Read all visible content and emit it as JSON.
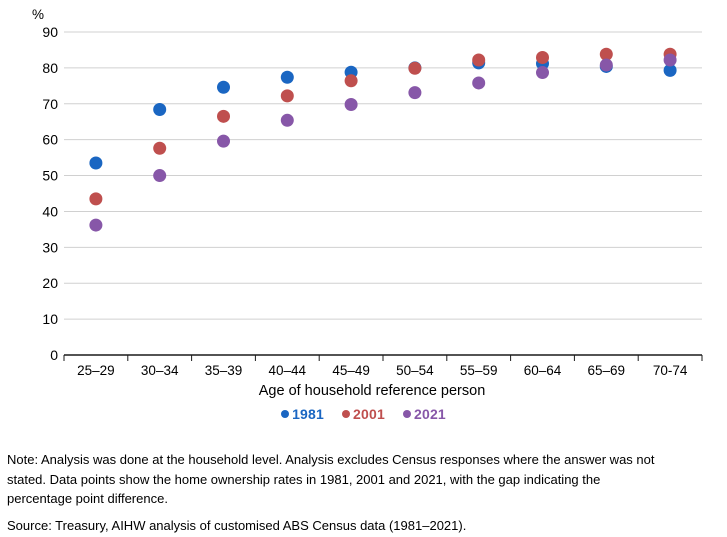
{
  "chart_data": {
    "type": "scatter",
    "title": "",
    "xlabel": "Age of household reference person",
    "y_unit_label": "%",
    "ylim": [
      0,
      90
    ],
    "ytick_interval": 10,
    "grid": "horizontal",
    "legend_position": "bottom",
    "categories": [
      "25–29",
      "30–34",
      "35–39",
      "40–44",
      "45–49",
      "50–54",
      "55–59",
      "60–64",
      "65–69",
      "70-74"
    ],
    "series": [
      {
        "name": "1981",
        "color": "#1a66c2",
        "values": [
          53.5,
          68.4,
          74.6,
          77.4,
          78.8,
          80.0,
          81.4,
          81.2,
          80.4,
          79.3
        ]
      },
      {
        "name": "2001",
        "color": "#bf4f4e",
        "values": [
          43.5,
          57.6,
          66.5,
          72.2,
          76.4,
          79.9,
          82.2,
          82.9,
          83.8,
          83.8
        ]
      },
      {
        "name": "2021",
        "color": "#8757a8",
        "values": [
          36.2,
          50.0,
          59.6,
          65.4,
          69.8,
          73.1,
          75.8,
          78.7,
          80.8,
          82.2
        ]
      }
    ],
    "colors": {
      "gridline": "#d0d0d0",
      "axis": "#1a1a1a",
      "text": "#000000"
    }
  },
  "notes": {
    "note_lines": [
      "Note: Analysis was done at the household level. Analysis excludes Census responses where the answer was not",
      "stated. Data points show the home ownership rates in 1981, 2001 and 2021, with the gap indicating the",
      "percentage point difference."
    ],
    "source": "Source: Treasury, AIHW analysis of customised ABS Census data (1981–2021)."
  }
}
